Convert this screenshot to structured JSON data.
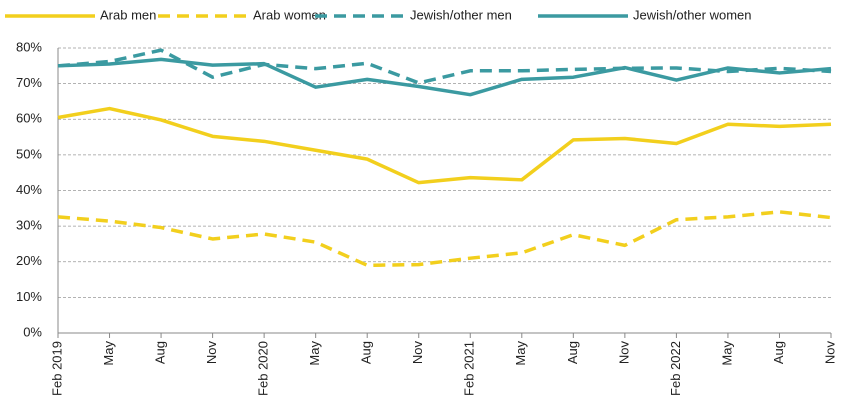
{
  "chart_data": {
    "type": "line",
    "categories": [
      "Feb 2019",
      "May",
      "Aug",
      "Nov",
      "Feb 2020",
      "May",
      "Aug",
      "Nov",
      "Feb 2021",
      "May",
      "Aug",
      "Nov",
      "Feb 2022",
      "May",
      "Aug",
      "Nov"
    ],
    "series": [
      {
        "name": "Arab men",
        "color": "#f2cf1d",
        "dashed": false,
        "values": [
          60.5,
          63,
          59.8,
          55.2,
          53.8,
          51.3,
          48.8,
          42.2,
          43.6,
          43,
          54.2,
          54.6,
          53.2,
          58.6,
          58,
          58.6
        ]
      },
      {
        "name": "Arab women",
        "color": "#f2cf1d",
        "dashed": true,
        "values": [
          32.6,
          31.4,
          29.6,
          26.4,
          27.8,
          25.5,
          19,
          19.2,
          21,
          22.5,
          27.6,
          24.6,
          31.8,
          32.6,
          34,
          32.4
        ]
      },
      {
        "name": "Jewish/other men",
        "color": "#3b9aa1",
        "dashed": true,
        "values": [
          75,
          76.2,
          79.4,
          71.8,
          75.4,
          74.2,
          75.7,
          70.2,
          73.6,
          73.6,
          74,
          74.3,
          74.4,
          73.4,
          74.3,
          73.4
        ]
      },
      {
        "name": "Jewish/other women",
        "color": "#3b9aa1",
        "dashed": false,
        "values": [
          75,
          75.5,
          76.8,
          75.2,
          75.6,
          69,
          71.2,
          69.2,
          66.9,
          71.2,
          71.8,
          74.5,
          71,
          74.4,
          73,
          74.2
        ]
      }
    ],
    "ylim": [
      0,
      80
    ],
    "yticks": [
      {
        "value": 0,
        "label": "0%"
      },
      {
        "value": 10,
        "label": "10%"
      },
      {
        "value": 20,
        "label": "20%"
      },
      {
        "value": 30,
        "label": "30%"
      },
      {
        "value": 40,
        "label": "40%"
      },
      {
        "value": 50,
        "label": "50%"
      },
      {
        "value": 60,
        "label": "60%"
      },
      {
        "value": 70,
        "label": "70%"
      },
      {
        "value": 80,
        "label": "80%"
      }
    ],
    "grid": true,
    "legend": "top"
  }
}
